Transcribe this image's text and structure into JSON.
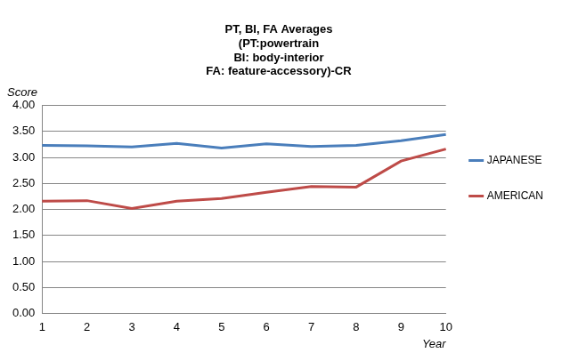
{
  "chart_data": {
    "type": "line",
    "title": [
      "PT, BI, FA Averages",
      "(PT:powertrain",
      "BI: body-interior",
      "FA: feature-accessory)-CR"
    ],
    "x_label": "Year",
    "y_label": "Score",
    "categories": [
      1,
      2,
      3,
      4,
      5,
      6,
      7,
      8,
      9,
      10
    ],
    "series": [
      {
        "name": "JAPANESE",
        "color": "#4a7ebb",
        "values": [
          3.23,
          3.22,
          3.2,
          3.27,
          3.18,
          3.26,
          3.21,
          3.23,
          3.32,
          3.44
        ]
      },
      {
        "name": "AMERICAN",
        "color": "#be4b48",
        "values": [
          2.16,
          2.17,
          2.02,
          2.16,
          2.21,
          2.33,
          2.44,
          2.43,
          2.93,
          3.16
        ]
      }
    ],
    "ylim": [
      0,
      4
    ],
    "yticks": [
      {
        "value": 0,
        "label": "0.00"
      },
      {
        "value": 0.5,
        "label": "0.50"
      },
      {
        "value": 1,
        "label": "1.00"
      },
      {
        "value": 1.5,
        "label": "1.50"
      },
      {
        "value": 2,
        "label": "2.00"
      },
      {
        "value": 2.5,
        "label": "2.50"
      },
      {
        "value": 3,
        "label": "3.00"
      },
      {
        "value": 3.5,
        "label": "3.50"
      },
      {
        "value": 4,
        "label": "4.00"
      }
    ],
    "grid": true,
    "legend": "right"
  }
}
